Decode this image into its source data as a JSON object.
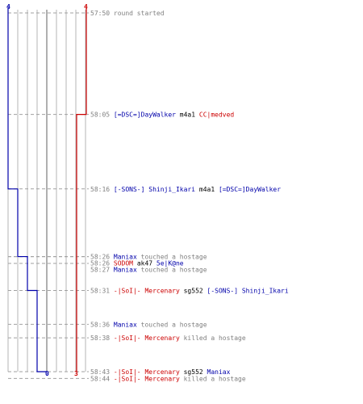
{
  "colors": {
    "blue": "#0000aa",
    "red": "#cc0000",
    "gray": "#808080",
    "grid": "#b4b4b4",
    "axis": "#909090",
    "text": "#808080"
  },
  "chart_data": {
    "type": "line",
    "team_blue": {
      "start_count": "4",
      "end_count": "0",
      "steps": [
        {
          "time": "57:50",
          "count": 4
        },
        {
          "time": "58:16",
          "count": 3
        },
        {
          "time": "58:26",
          "count": 2
        },
        {
          "time": "58:31",
          "count": 1
        },
        {
          "time": "58:43",
          "count": 0
        }
      ]
    },
    "team_red": {
      "start_count": "4",
      "end_count": "3",
      "steps": [
        {
          "time": "57:50",
          "count": 4
        },
        {
          "time": "58:05",
          "count": 3
        }
      ]
    },
    "events": [
      {
        "time": "57:50",
        "segs": [
          {
            "t": "round started",
            "c": "gray"
          }
        ]
      },
      {
        "time": "58:05",
        "segs": [
          {
            "t": "[=DSC=]DayWalker",
            "c": "blue"
          },
          {
            "t": " m4a1 ",
            "c": "black"
          },
          {
            "t": "CC|medved",
            "c": "red"
          }
        ]
      },
      {
        "time": "58:16",
        "segs": [
          {
            "t": "[-SONS-] Shinji_Ikari",
            "c": "blue"
          },
          {
            "t": " m4a1 ",
            "c": "black"
          },
          {
            "t": "[=DSC=]DayWalker",
            "c": "blue"
          }
        ]
      },
      {
        "time": "58:26",
        "segs": [
          {
            "t": "Maniax",
            "c": "blue"
          },
          {
            "t": " touched a hostage",
            "c": "gray"
          }
        ]
      },
      {
        "time": "58:26",
        "segs": [
          {
            "t": "SODOM",
            "c": "red"
          },
          {
            "t": " ak47 ",
            "c": "black"
          },
          {
            "t": "5e|K@ne",
            "c": "blue"
          }
        ]
      },
      {
        "time": "58:27",
        "segs": [
          {
            "t": "Maniax",
            "c": "blue"
          },
          {
            "t": " touched a hostage",
            "c": "gray"
          }
        ]
      },
      {
        "time": "58:31",
        "segs": [
          {
            "t": "-|SoI|- Mercenary",
            "c": "red"
          },
          {
            "t": " sg552 ",
            "c": "black"
          },
          {
            "t": "[-SONS-] Shinji_Ikari",
            "c": "blue"
          }
        ]
      },
      {
        "time": "58:36",
        "segs": [
          {
            "t": "Maniax",
            "c": "blue"
          },
          {
            "t": " touched a hostage",
            "c": "gray"
          }
        ]
      },
      {
        "time": "58:38",
        "segs": [
          {
            "t": "-|SoI|- Mercenary",
            "c": "red"
          },
          {
            "t": " killed a hostage",
            "c": "gray"
          }
        ]
      },
      {
        "time": "58:43",
        "segs": [
          {
            "t": "-|SoI|- Mercenary",
            "c": "red"
          },
          {
            "t": " sg552 ",
            "c": "black"
          },
          {
            "t": "Maniax",
            "c": "blue"
          }
        ]
      },
      {
        "time": "58:44",
        "segs": [
          {
            "t": "-|SoI|- Mercenary",
            "c": "red"
          },
          {
            "t": " killed a hostage",
            "c": "gray"
          }
        ]
      }
    ]
  }
}
